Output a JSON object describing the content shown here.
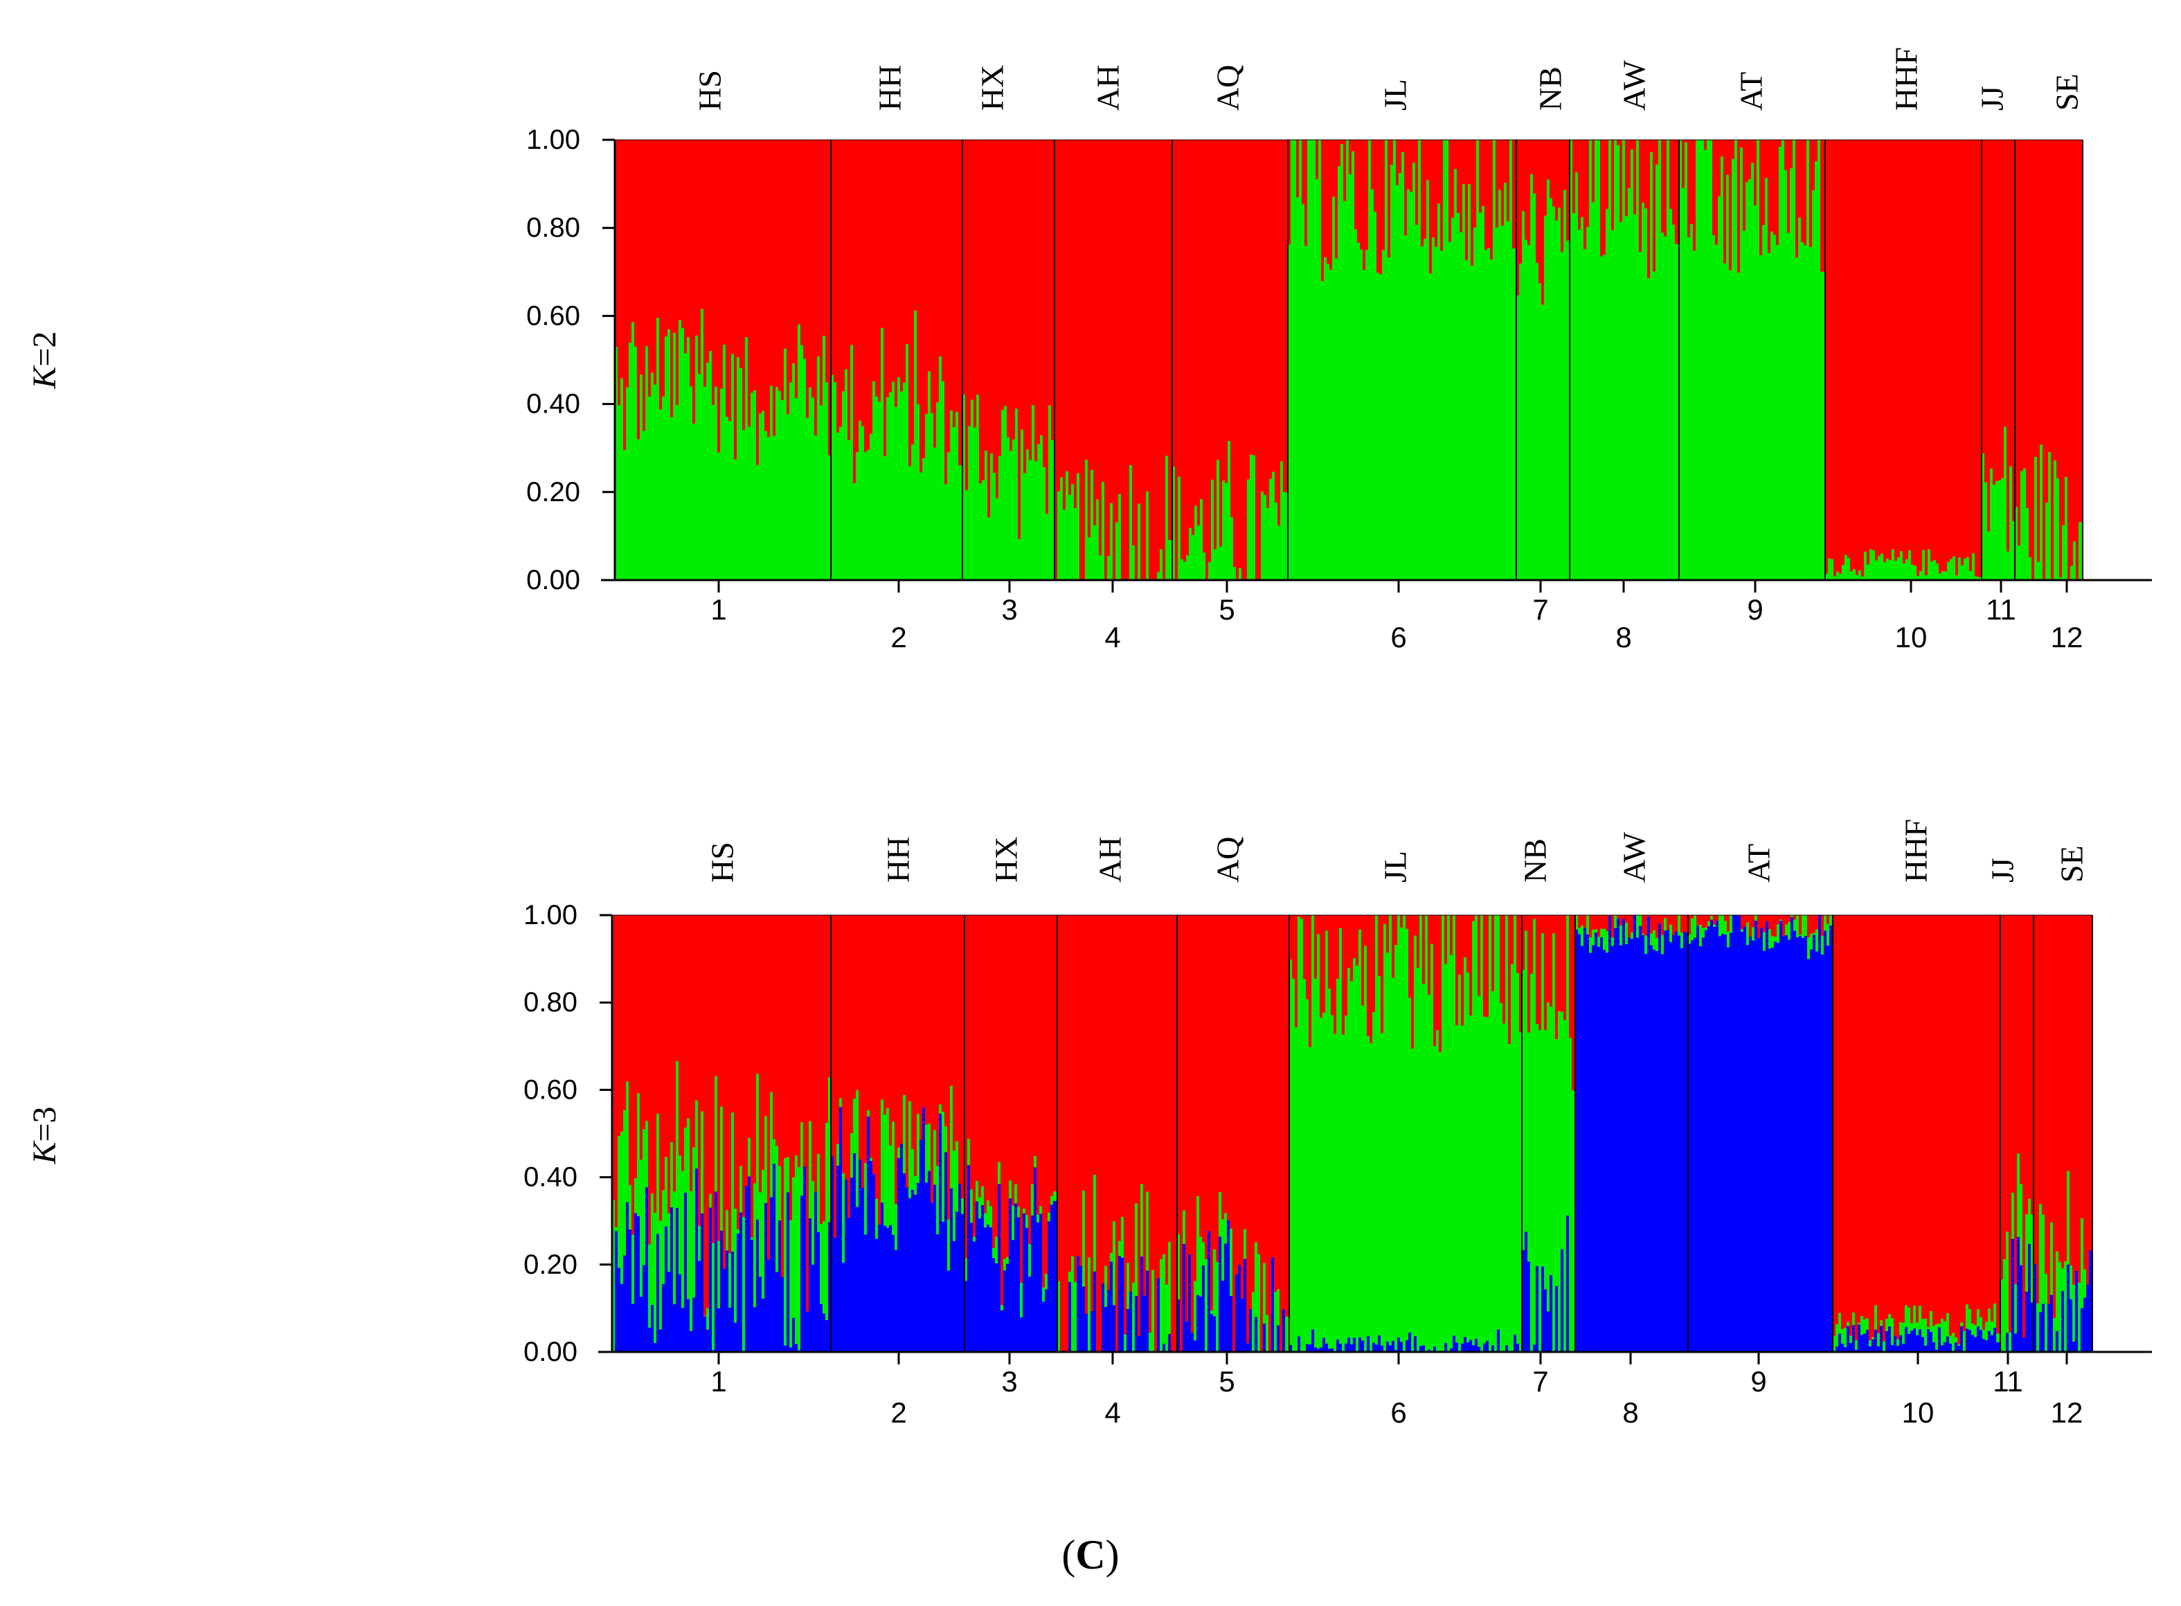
{
  "caption": {
    "open": "(",
    "letter": "C",
    "close": ")"
  },
  "colors": {
    "red": "#FF0000",
    "green": "#00EE00",
    "blue": "#0000FF",
    "axis": "#000000"
  },
  "chart_data": [
    {
      "type": "bar",
      "stacked": true,
      "panel_label": {
        "k": "K",
        "rest": "=2"
      },
      "ylim": [
        0,
        1
      ],
      "yticks": [
        "0.00",
        "0.20",
        "0.40",
        "0.60",
        "0.80",
        "1.00"
      ],
      "populations": [
        "HS",
        "HH",
        "HX",
        "AH",
        "AQ",
        "JL",
        "NB",
        "AW",
        "AT",
        "HHF",
        "JJ",
        "SE"
      ],
      "cluster_numbers": [
        "1",
        "2",
        "3",
        "4",
        "5",
        "6",
        "7",
        "8",
        "9",
        "10",
        "11",
        "12"
      ],
      "series": [
        {
          "color": "green",
          "pop_means": [
            0.45,
            0.4,
            0.3,
            0.1,
            0.12,
            0.85,
            0.75,
            0.88,
            0.85,
            0.04,
            0.2,
            0.15
          ]
        },
        {
          "color": "red",
          "pop_means": [
            0.55,
            0.6,
            0.7,
            0.9,
            0.88,
            0.15,
            0.25,
            0.12,
            0.15,
            0.96,
            0.8,
            0.85
          ]
        }
      ]
    },
    {
      "type": "bar",
      "stacked": true,
      "panel_label": {
        "k": "K",
        "rest": "=3"
      },
      "ylim": [
        0,
        1
      ],
      "yticks": [
        "0.00",
        "0.20",
        "0.40",
        "0.60",
        "0.80",
        "1.00"
      ],
      "populations": [
        "HS",
        "HH",
        "HX",
        "AH",
        "AQ",
        "JL",
        "NB",
        "AW",
        "AT",
        "HHF",
        "JJ",
        "SE"
      ],
      "cluster_numbers": [
        "1",
        "2",
        "3",
        "4",
        "5",
        "6",
        "7",
        "8",
        "9",
        "10",
        "11",
        "12"
      ],
      "series": [
        {
          "color": "blue",
          "pop_means": [
            0.22,
            0.4,
            0.28,
            0.05,
            0.08,
            0.01,
            0.1,
            0.96,
            0.96,
            0.03,
            0.08,
            0.06
          ]
        },
        {
          "color": "green",
          "pop_means": [
            0.2,
            0.05,
            0.04,
            0.06,
            0.06,
            0.85,
            0.7,
            0.02,
            0.02,
            0.03,
            0.1,
            0.1
          ]
        },
        {
          "color": "red",
          "pop_means": [
            0.58,
            0.55,
            0.68,
            0.89,
            0.86,
            0.14,
            0.2,
            0.02,
            0.02,
            0.94,
            0.82,
            0.84
          ]
        }
      ]
    }
  ]
}
